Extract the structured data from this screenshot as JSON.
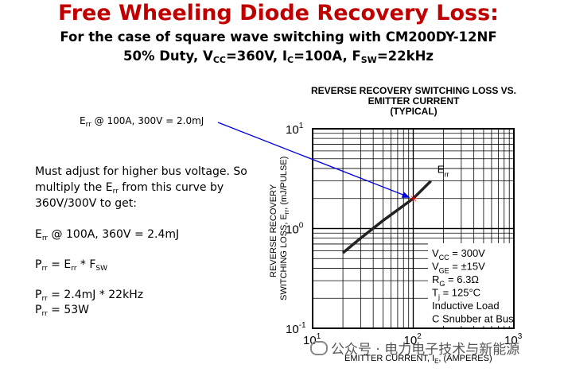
{
  "slide": {
    "title": "Free Wheeling Diode Recovery Loss:",
    "subtitle_line1": "For the case of square wave switching with CM200DY-12NF",
    "subtitle_line2": {
      "p1": "50% Duty, V",
      "s1": "CC",
      "p2": "=360V, I",
      "s2": "C",
      "p3": "=100A, F",
      "s3": "SW",
      "p4": "=22kHz"
    },
    "callout": {
      "a": "E",
      "b": "rr",
      "c": " @ 100A, 300V = 2.0mJ"
    },
    "text": {
      "l1": "Must adjust for higher bus voltage.  So",
      "l2a": "multiply the E",
      "l2b": "rr",
      "l2c": " from this curve by",
      "l3": "360V/300V to get:",
      "l4a": "E",
      "l4b": "rr",
      "l4c": " @ 100A, 360V = 2.4mJ",
      "l5a": "P",
      "l5b": "rr",
      "l5c": " = E",
      "l5d": "rr",
      "l5e": " * F",
      "l5f": "SW",
      "l6a": "P",
      "l6b": "rr",
      "l6c": " = 2.4mJ * 22kHz",
      "l7a": "P",
      "l7b": "rr",
      "l7c": " = 53W"
    },
    "watermark": "公众号 · 电力电子技术与新能源"
  },
  "chart_data": {
    "type": "line",
    "title": "REVERSE RECOVERY SWITCHING LOSS VS. EMITTER CURRENT (TYPICAL)",
    "title_lines": [
      "REVERSE RECOVERY SWITCHING LOSS VS.",
      "EMITTER CURRENT",
      "(TYPICAL)"
    ],
    "xlabel": "EMITTER CURRENT, IE, (AMPERES)",
    "ylabel": "REVERSE RECOVERY SWITCHING LOSS, Err, (mJ/PULSE)",
    "x_scale": "log",
    "y_scale": "log",
    "xlim": [
      10,
      1000
    ],
    "ylim": [
      0.1,
      10
    ],
    "x_ticks": [
      {
        "base": "10",
        "exp": "1"
      },
      {
        "base": "10",
        "exp": "2"
      },
      {
        "base": "10",
        "exp": "3"
      }
    ],
    "y_ticks": [
      {
        "base": "10",
        "exp": "1"
      },
      {
        "base": "10",
        "exp": "0"
      },
      {
        "base": "10",
        "exp": "-1"
      }
    ],
    "grid": true,
    "series": [
      {
        "name": "Err",
        "x": [
          20,
          30,
          50,
          100,
          150
        ],
        "y": [
          0.57,
          0.8,
          1.2,
          2.0,
          3.0
        ]
      }
    ],
    "marker": {
      "x": 100,
      "y": 2.0
    },
    "conditions": [
      "VCC = 300V",
      "VGE = ±15V",
      "RG = 6.3Ω",
      "Tj = 125°C",
      "Inductive Load",
      "C Snubber at Bus"
    ]
  }
}
